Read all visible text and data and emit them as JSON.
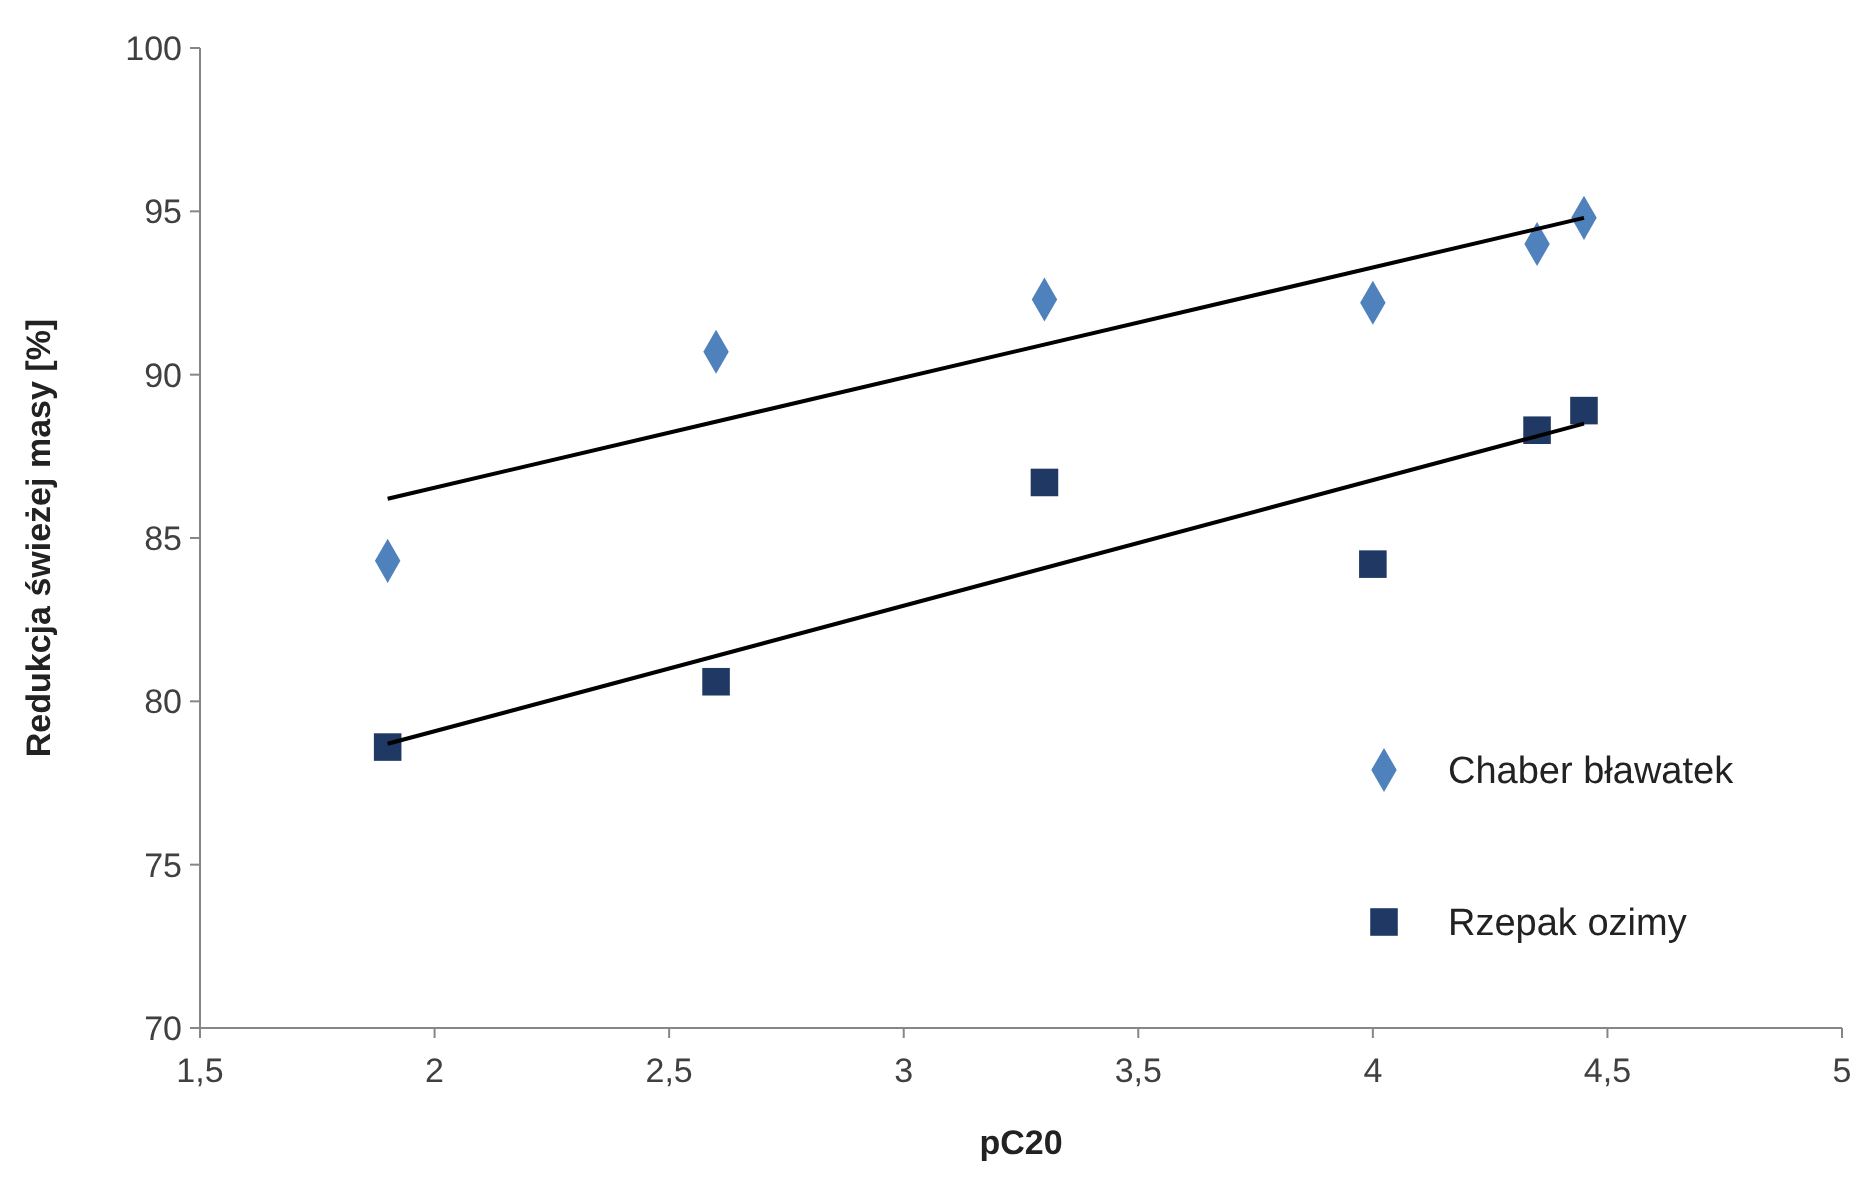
{
  "chart_data": {
    "type": "scatter",
    "xlabel": "pC20",
    "ylabel": "Redukcja świeżej masy  [%]",
    "xlim": [
      1.5,
      5
    ],
    "xticks": [
      {
        "value": 1.5,
        "label": "1,5"
      },
      2,
      {
        "value": 2.5,
        "label": "2,5"
      },
      3,
      {
        "value": 3.5,
        "label": "3,5"
      },
      4,
      {
        "value": 4.5,
        "label": "4,5"
      },
      5
    ],
    "ylim": [
      70,
      100
    ],
    "yticks": [
      70,
      75,
      80,
      85,
      90,
      95,
      100
    ],
    "grid": false,
    "legend": "right",
    "series": [
      {
        "name": "Chaber bławatek",
        "color": "#4f81bd",
        "marker": "diamond",
        "x": [
          1.9,
          2.6,
          3.3,
          4.0,
          4.35,
          4.45
        ],
        "values": [
          84.3,
          90.7,
          92.3,
          92.2,
          94.0,
          94.8
        ]
      },
      {
        "name": "Rzepak ozimy",
        "color": "#1f3864",
        "marker": "square",
        "x": [
          1.9,
          2.6,
          3.3,
          4.0,
          4.35,
          4.45
        ],
        "values": [
          78.6,
          80.6,
          86.7,
          84.2,
          88.3,
          88.9
        ]
      },
      {
        "type": "line",
        "color": "#000000",
        "marker": "none",
        "x": [
          1.9,
          4.45
        ],
        "values": [
          86.2,
          94.8
        ]
      },
      {
        "type": "line",
        "color": "#000000",
        "marker": "none",
        "x": [
          1.9,
          4.45
        ],
        "values": [
          78.7,
          88.5
        ]
      }
    ]
  }
}
